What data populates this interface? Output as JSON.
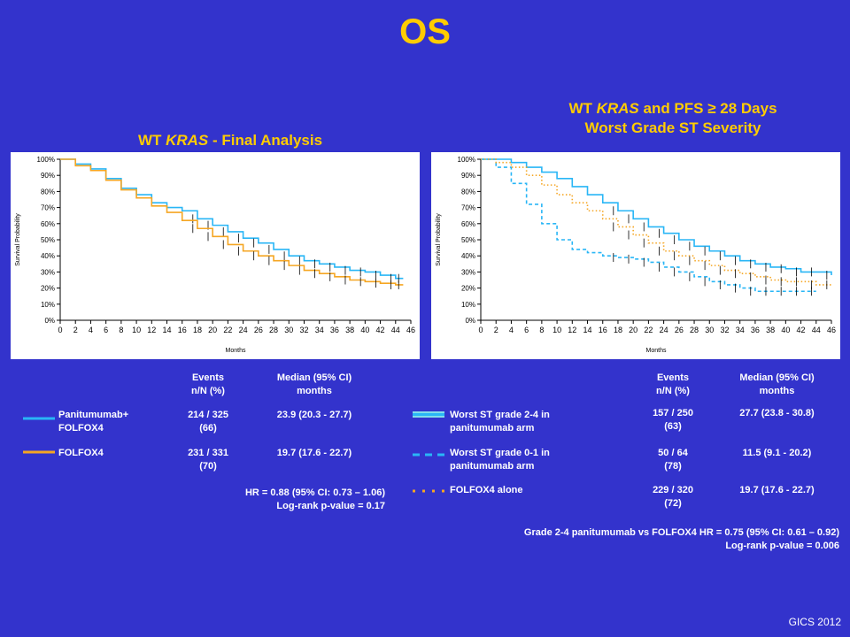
{
  "slide": {
    "title": "OS",
    "footer": "GICS 2012"
  },
  "left": {
    "title_prefix": "WT ",
    "title_italic": "KRAS",
    "title_suffix": " - Final Analysis",
    "table": {
      "headers": [
        "Events\nn/N (%)",
        "Median (95% CI)\nmonths"
      ],
      "rows": [
        {
          "label": "Panitumumab+\nFOLFOX4",
          "color": "#29b6f6",
          "style": "solid",
          "events": "214 / 325\n(66)",
          "median": "23.9  (20.3 - 27.7)"
        },
        {
          "label": "FOLFOX4",
          "color": "#f5a623",
          "style": "solid",
          "events": "231 / 331\n(70)",
          "median": "19.7 (17.6 - 22.7)"
        }
      ],
      "footnote": "HR = 0.88 (95% CI: 0.73 – 1.06)\nLog-rank p-value = 0.17"
    }
  },
  "right": {
    "title_line1_prefix": "WT ",
    "title_line1_italic": "KRAS",
    "title_line1_suffix": " and PFS ≥ 28 Days",
    "title_line2": "Worst Grade ST Severity",
    "table": {
      "headers": [
        "Events\nn/N (%)",
        "Median (95% CI)\nmonths"
      ],
      "rows": [
        {
          "label": "Worst ST grade 2-4 in\npanitumumab arm",
          "color": "#29b6f6",
          "style": "solid",
          "events": "157 / 250\n(63)",
          "median": "27.7  (23.8 - 30.8)"
        },
        {
          "label": "Worst ST grade 0-1 in\npanitumumab arm",
          "color": "#29b6f6",
          "style": "dashed",
          "events": "50 / 64\n(78)",
          "median": "11.5 (9.1 - 20.2)"
        },
        {
          "label": "FOLFOX4 alone",
          "color": "#f5a623",
          "style": "dotted",
          "events": "229 / 320\n(72)",
          "median": "19.7 (17.6 - 22.7)"
        }
      ],
      "footnote": "Grade 2-4 panitumumab vs FOLFOX4 HR = 0.75 (95% CI: 0.61 – 0.92)\nLog-rank p-value = 0.006"
    }
  },
  "chart_data": [
    {
      "type": "line",
      "xlabel": "Months",
      "ylabel": "Survival Probability",
      "xlim": [
        0,
        46
      ],
      "ylim": [
        0,
        100
      ],
      "x_ticks": [
        0,
        2,
        4,
        6,
        8,
        10,
        12,
        14,
        16,
        18,
        20,
        22,
        24,
        26,
        28,
        30,
        32,
        34,
        36,
        38,
        40,
        42,
        44,
        46
      ],
      "y_ticks": [
        "0%",
        "10%",
        "20%",
        "30%",
        "40%",
        "50%",
        "60%",
        "70%",
        "80%",
        "90%",
        "100%"
      ],
      "grid": false,
      "series": [
        {
          "color": "#29b6f6",
          "style": "solid",
          "x": [
            0,
            2,
            4,
            6,
            8,
            10,
            12,
            14,
            16,
            18,
            20,
            22,
            24,
            26,
            28,
            30,
            32,
            34,
            36,
            38,
            40,
            42,
            44,
            45
          ],
          "y": [
            100,
            97,
            94,
            88,
            82,
            78,
            73,
            70,
            68,
            63,
            59,
            55,
            51,
            48,
            44,
            40,
            37,
            35,
            33,
            31,
            30,
            28,
            26,
            26
          ]
        },
        {
          "color": "#f5a623",
          "style": "solid",
          "x": [
            0,
            2,
            4,
            6,
            8,
            10,
            12,
            14,
            16,
            18,
            20,
            22,
            24,
            26,
            28,
            30,
            32,
            34,
            36,
            38,
            40,
            42,
            44,
            45
          ],
          "y": [
            100,
            96,
            93,
            87,
            81,
            76,
            71,
            67,
            62,
            57,
            52,
            47,
            43,
            40,
            37,
            34,
            31,
            29,
            27,
            25,
            24,
            23,
            22,
            22
          ]
        }
      ]
    },
    {
      "type": "line",
      "xlabel": "Months",
      "ylabel": "Survival Probability",
      "xlim": [
        0,
        46
      ],
      "ylim": [
        0,
        100
      ],
      "x_ticks": [
        0,
        2,
        4,
        6,
        8,
        10,
        12,
        14,
        16,
        18,
        20,
        22,
        24,
        26,
        28,
        30,
        32,
        34,
        36,
        38,
        40,
        42,
        44,
        46
      ],
      "y_ticks": [
        "0%",
        "10%",
        "20%",
        "30%",
        "40%",
        "50%",
        "60%",
        "70%",
        "80%",
        "90%",
        "100%"
      ],
      "grid": false,
      "series": [
        {
          "color": "#29b6f6",
          "style": "solid",
          "x": [
            0,
            2,
            4,
            6,
            8,
            10,
            12,
            14,
            16,
            18,
            20,
            22,
            24,
            26,
            28,
            30,
            32,
            34,
            36,
            38,
            40,
            42,
            44,
            46
          ],
          "y": [
            100,
            100,
            98,
            95,
            92,
            88,
            83,
            78,
            73,
            68,
            63,
            58,
            54,
            50,
            46,
            43,
            40,
            37,
            35,
            33,
            32,
            30,
            30,
            28
          ]
        },
        {
          "color": "#29b6f6",
          "style": "dashed",
          "x": [
            0,
            2,
            4,
            6,
            8,
            10,
            12,
            14,
            16,
            18,
            20,
            22,
            24,
            26,
            28,
            30,
            32,
            34,
            36,
            38,
            40,
            42,
            44
          ],
          "y": [
            100,
            95,
            85,
            72,
            60,
            50,
            44,
            42,
            40,
            39,
            38,
            36,
            33,
            30,
            27,
            24,
            22,
            20,
            18,
            18,
            18,
            18,
            18
          ]
        },
        {
          "color": "#f5a623",
          "style": "dotted",
          "x": [
            0,
            2,
            4,
            6,
            8,
            10,
            12,
            14,
            16,
            18,
            20,
            22,
            24,
            26,
            28,
            30,
            32,
            34,
            36,
            38,
            40,
            42,
            44,
            46
          ],
          "y": [
            100,
            98,
            95,
            90,
            84,
            78,
            73,
            68,
            63,
            58,
            53,
            48,
            43,
            40,
            37,
            34,
            31,
            29,
            27,
            25,
            24,
            24,
            22,
            22
          ]
        }
      ]
    }
  ]
}
